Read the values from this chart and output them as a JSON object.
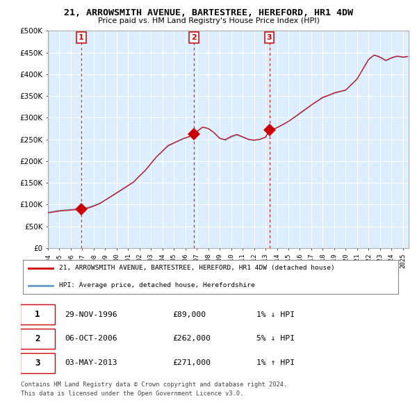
{
  "title": "21, ARROWSMITH AVENUE, BARTESTREE, HEREFORD, HR1 4DW",
  "subtitle": "Price paid vs. HM Land Registry's House Price Index (HPI)",
  "legend_line1": "21, ARROWSMITH AVENUE, BARTESTREE, HEREFORD, HR1 4DW (detached house)",
  "legend_line2": "HPI: Average price, detached house, Herefordshire",
  "transactions": [
    {
      "num": 1,
      "date": "29-NOV-1996",
      "price": 89000,
      "pct": "1%",
      "dir": "↓",
      "year": 1996.917
    },
    {
      "num": 2,
      "date": "06-OCT-2006",
      "price": 262000,
      "pct": "5%",
      "dir": "↓",
      "year": 2006.75
    },
    {
      "num": 3,
      "date": "03-MAY-2013",
      "price": 271000,
      "pct": "1%",
      "dir": "↑",
      "year": 2013.333
    }
  ],
  "footer1": "Contains HM Land Registry data © Crown copyright and database right 2024.",
  "footer2": "This data is licensed under the Open Government Licence v3.0.",
  "xmin": 1994.0,
  "xmax": 2025.5,
  "ymin": 0,
  "ymax": 500000,
  "yticks": [
    0,
    50000,
    100000,
    150000,
    200000,
    250000,
    300000,
    350000,
    400000,
    450000,
    500000
  ],
  "ytick_labels": [
    "£0",
    "£50K",
    "£100K",
    "£150K",
    "£200K",
    "£250K",
    "£300K",
    "£350K",
    "£400K",
    "£450K",
    "£500K"
  ],
  "red_color": "#cc0000",
  "blue_color": "#6699cc",
  "plot_bg": "#ddeeff",
  "grid_color": "#ffffff",
  "transaction_marker_size": 9,
  "hpi_base_points": [
    [
      1994.0,
      82000
    ],
    [
      1995.0,
      86000
    ],
    [
      1996.0,
      88000
    ],
    [
      1996.917,
      89500
    ],
    [
      1997.5,
      94000
    ],
    [
      1998.5,
      103000
    ],
    [
      1999.5,
      118000
    ],
    [
      2000.5,
      135000
    ],
    [
      2001.5,
      152000
    ],
    [
      2002.5,
      178000
    ],
    [
      2003.5,
      210000
    ],
    [
      2004.5,
      235000
    ],
    [
      2005.5,
      248000
    ],
    [
      2006.5,
      258000
    ],
    [
      2006.75,
      262000
    ],
    [
      2007.5,
      278000
    ],
    [
      2008.0,
      275000
    ],
    [
      2008.5,
      265000
    ],
    [
      2009.0,
      252000
    ],
    [
      2009.5,
      248000
    ],
    [
      2010.0,
      255000
    ],
    [
      2010.5,
      260000
    ],
    [
      2011.0,
      255000
    ],
    [
      2011.5,
      250000
    ],
    [
      2012.0,
      248000
    ],
    [
      2012.5,
      250000
    ],
    [
      2013.0,
      255000
    ],
    [
      2013.333,
      271000
    ],
    [
      2013.5,
      272000
    ],
    [
      2014.0,
      278000
    ],
    [
      2015.0,
      292000
    ],
    [
      2016.0,
      310000
    ],
    [
      2017.0,
      330000
    ],
    [
      2018.0,
      348000
    ],
    [
      2019.0,
      358000
    ],
    [
      2020.0,
      365000
    ],
    [
      2021.0,
      390000
    ],
    [
      2022.0,
      435000
    ],
    [
      2022.5,
      445000
    ],
    [
      2023.0,
      440000
    ],
    [
      2023.5,
      432000
    ],
    [
      2024.0,
      438000
    ],
    [
      2024.5,
      442000
    ],
    [
      2025.0,
      440000
    ],
    [
      2025.4,
      441000
    ]
  ]
}
